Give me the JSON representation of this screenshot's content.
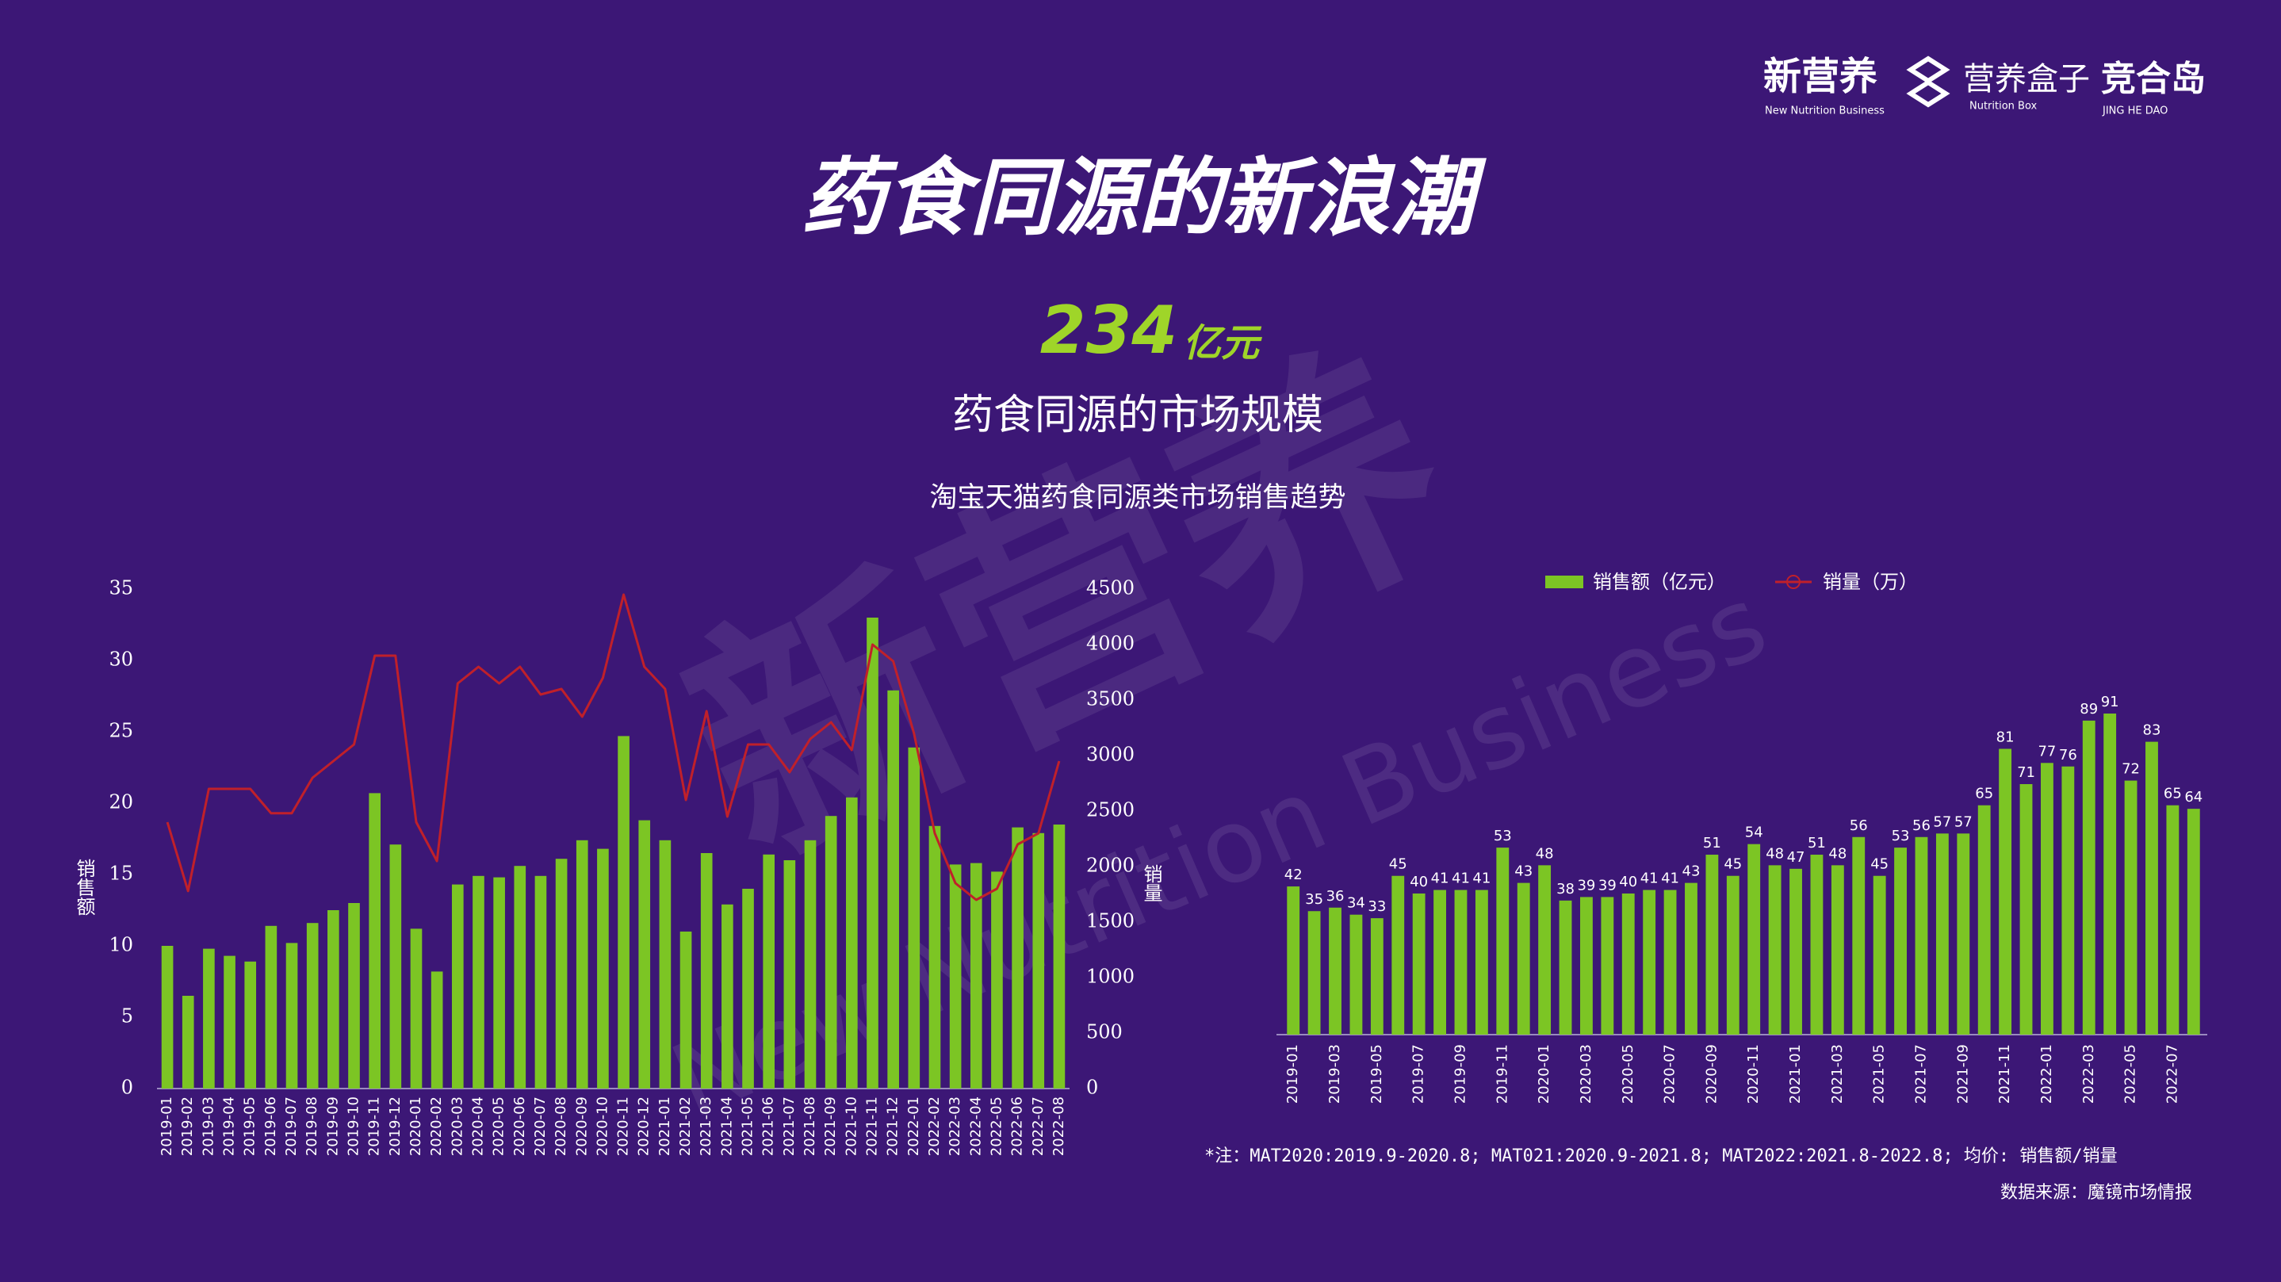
{
  "header": {
    "logos": [
      "新营养",
      "New Nutrition Business",
      "营养盒子",
      "Nutrition Box",
      "竞合岛",
      "JING HE DAO"
    ],
    "title": "药食同源的新浪潮",
    "kpi_value": "234",
    "kpi_unit": "亿元",
    "kpi_label": "药食同源的市场规模",
    "subtitle": "淘宝天猫药食同源类市场销售趋势",
    "watermark": [
      "新营养",
      "New Nutrition Business"
    ]
  },
  "chart_data": [
    {
      "type": "bar",
      "categories": [
        "2019-01",
        "2019-02",
        "2019-03",
        "2019-04",
        "2019-05",
        "2019-06",
        "2019-07",
        "2019-08",
        "2019-09",
        "2019-10",
        "2019-11",
        "2019-12",
        "2020-01",
        "2020-02",
        "2020-03",
        "2020-04",
        "2020-05",
        "2020-06",
        "2020-07",
        "2020-08",
        "2020-09",
        "2020-10",
        "2020-11",
        "2020-12",
        "2021-01",
        "2021-02",
        "2021-03",
        "2021-04",
        "2021-05",
        "2021-06",
        "2021-07",
        "2021-08",
        "2021-09",
        "2021-10",
        "2021-11",
        "2021-12",
        "2022-01",
        "2022-02",
        "2022-03",
        "2022-04",
        "2022-05",
        "2022-06",
        "2022-07",
        "2022-08"
      ],
      "series": [
        {
          "name": "销售额（亿元）",
          "color": "#7cc524",
          "type": "bar",
          "values": [
            10,
            6.5,
            9.8,
            9.3,
            8.9,
            11.4,
            10.2,
            11.6,
            12.5,
            13,
            20.7,
            17.1,
            11.2,
            8.2,
            14.3,
            14.9,
            14.8,
            15.6,
            14.9,
            16.1,
            17.4,
            16.8,
            24.7,
            18.8,
            17.4,
            11,
            16.5,
            12.9,
            14,
            16.4,
            16,
            17.4,
            19.1,
            20.4,
            33,
            27.9,
            23.9,
            18.4,
            15.7,
            15.8,
            15.2,
            18.3,
            17.9,
            18.5
          ]
        },
        {
          "name": "销量（万）",
          "color": "#c0202a",
          "type": "line",
          "axis": "y2",
          "values": [
            2400,
            1780,
            2700,
            2700,
            2700,
            2480,
            2480,
            2800,
            2950,
            3100,
            3900,
            3900,
            2400,
            2050,
            3650,
            3800,
            3650,
            3800,
            3550,
            3600,
            3350,
            3700,
            4450,
            3800,
            3600,
            2600,
            3400,
            2450,
            3100,
            3100,
            2850,
            3150,
            3300,
            3050,
            4000,
            3850,
            3200,
            2300,
            1850,
            1700,
            1800,
            2200,
            2300,
            2950
          ]
        }
      ],
      "ylabel": "销售额",
      "y2label": "销量",
      "ylim": [
        0,
        35
      ],
      "yticks": [
        0,
        5,
        10,
        15,
        20,
        25,
        30,
        35
      ],
      "y2lim": [
        0,
        4500
      ],
      "y2ticks": [
        0,
        500,
        1000,
        1500,
        2000,
        2500,
        3000,
        3500,
        4000,
        4500
      ]
    },
    {
      "type": "bar",
      "color": "#7cc524",
      "categories": [
        "2019-01",
        null,
        "2019-03",
        null,
        "2019-05",
        null,
        "2019-07",
        null,
        "2019-09",
        null,
        "2019-11",
        null,
        "2020-01",
        null,
        "2020-03",
        null,
        "2020-05",
        null,
        "2020-07",
        null,
        "2020-09",
        null,
        "2020-11",
        null,
        "2021-01",
        null,
        "2021-03",
        null,
        "2021-05",
        null,
        "2021-07",
        null,
        "2021-09",
        null,
        "2021-11",
        null,
        "2022-01",
        null,
        "2022-03",
        null,
        "2022-05",
        null,
        "2022-07",
        null
      ],
      "values": [
        42,
        35,
        36,
        34,
        33,
        45,
        40,
        41,
        41,
        41,
        53,
        43,
        48,
        38,
        39,
        39,
        40,
        41,
        41,
        43,
        51,
        45,
        54,
        48,
        47,
        51,
        48,
        56,
        45,
        53,
        56,
        57,
        57,
        65,
        81,
        71,
        77,
        76,
        89,
        91,
        72,
        83,
        65,
        64
      ]
    }
  ],
  "notes": {
    "footnote": "*注：MAT2020:2019.9-2020.8; MAT021:2020.9-2021.8; MAT2022:2021.8-2022.8; 均价: 销售额/销量",
    "source": "数据来源：魔镜市场情报"
  }
}
